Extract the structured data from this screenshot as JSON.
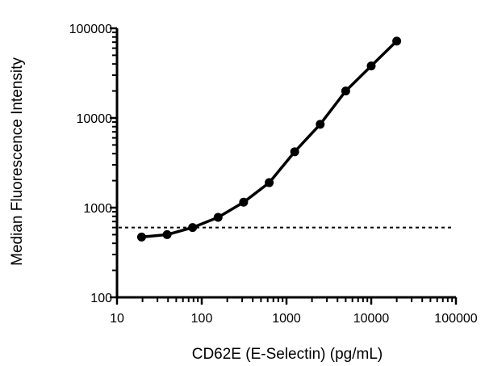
{
  "chart_data": {
    "type": "line",
    "title": "",
    "xlabel": "CD62E (E-Selectin) (pg/mL)",
    "ylabel": "Median Fluorescence Intensity",
    "x_scale": "log",
    "y_scale": "log",
    "xlim": [
      10,
      100000
    ],
    "ylim": [
      100,
      100000
    ],
    "x_ticks": [
      "10",
      "100",
      "1000",
      "10000",
      "100000"
    ],
    "y_ticks": [
      "100",
      "1000",
      "10000",
      "100000"
    ],
    "grid": false,
    "legend": "none",
    "series": [
      {
        "x": [
          19.5,
          39,
          78,
          156,
          312,
          625,
          1250,
          2500,
          5000,
          10000,
          20000
        ],
        "y": [
          470,
          500,
          600,
          780,
          1150,
          1900,
          4200,
          8500,
          20000,
          38000,
          72000
        ],
        "color": "#000000",
        "marker": "circle"
      }
    ],
    "reference_lines": [
      {
        "orientation": "horizontal",
        "y": 600,
        "style": "dotted",
        "color": "#000000"
      }
    ]
  }
}
